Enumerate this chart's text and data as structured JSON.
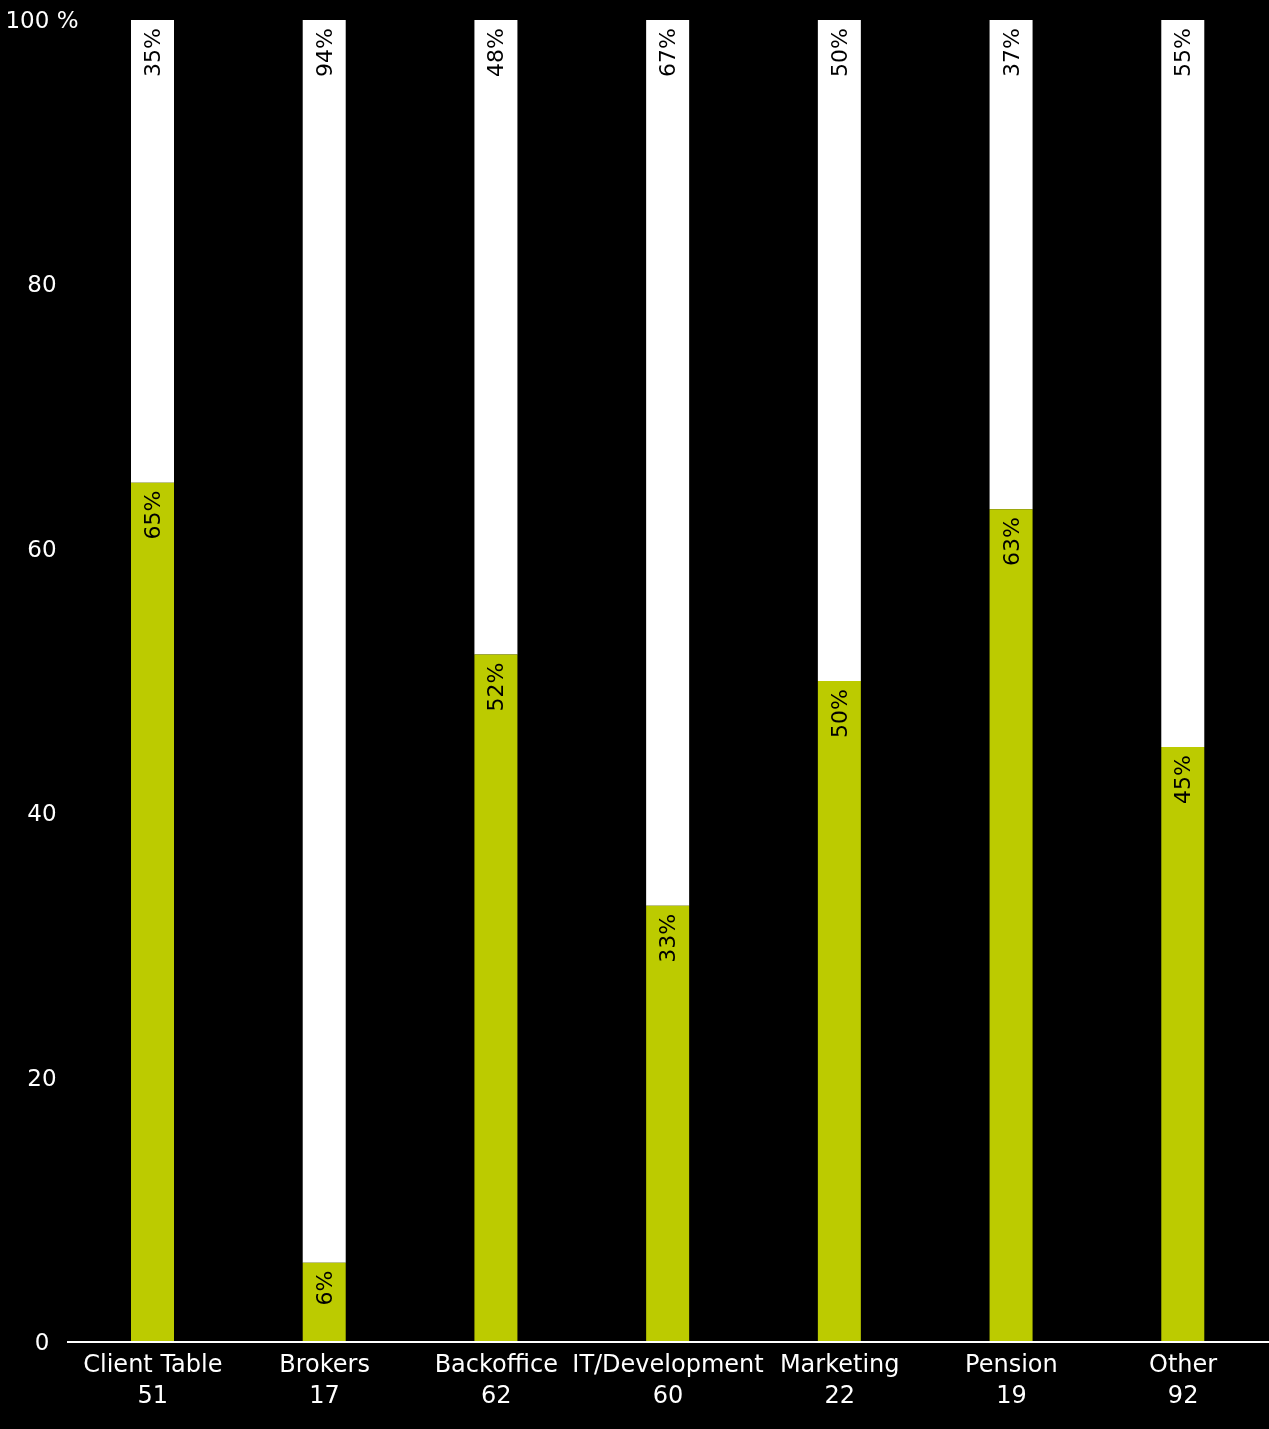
{
  "chart_data": {
    "type": "bar",
    "stacked": true,
    "categories": [
      "Client Table\n51",
      "Brokers\n17",
      "Backoffice\n62",
      "IT/Development\n60",
      "Marketing\n22",
      "Pension\n19",
      "Other\n92"
    ],
    "series": [
      {
        "color": "#bccb00",
        "values": [
          65,
          6,
          52,
          33,
          50,
          63,
          45
        ],
        "value_labels": [
          "65%",
          "6%",
          "52%",
          "33%",
          "50%",
          "63%",
          "45%"
        ]
      },
      {
        "color": "#ffffff",
        "values": [
          35,
          94,
          48,
          67,
          50,
          37,
          55
        ],
        "value_labels": [
          "35%",
          "94%",
          "48%",
          "67%",
          "50%",
          "37%",
          "55%"
        ]
      }
    ],
    "ylim": [
      0,
      100
    ],
    "yticks": [
      0,
      20,
      40,
      60,
      80,
      {
        "value": 100,
        "label": "100 %"
      }
    ],
    "grid": false,
    "legend": false
  }
}
